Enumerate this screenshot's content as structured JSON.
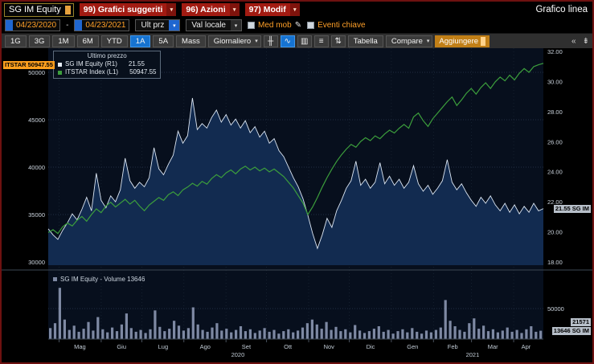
{
  "titlebar": {
    "security": "SG IM Equity",
    "menus": [
      {
        "label": "99) Grafici suggeriti"
      },
      {
        "label": "96) Azioni"
      },
      {
        "label": "97) Modif"
      }
    ],
    "screen_title": "Grafico linea"
  },
  "controls": {
    "date_from": "04/23/2020",
    "date_to": "04/23/2021",
    "price_field": "Ult prz",
    "currency_field": "Val locale",
    "mov_avg": "Med mob",
    "key_events": "Eventi chiave"
  },
  "toolbar": {
    "periods": [
      "1G",
      "3G",
      "1M",
      "6M",
      "YTD",
      "1A",
      "5A",
      "Mass"
    ],
    "active_period": "1A",
    "frequency": "Giornaliero",
    "table": "Tabella",
    "compare": "Compare",
    "add": "Aggiungere"
  },
  "icons": {
    "caret_down": "▾",
    "pencil": "✎",
    "candlestick": "╫",
    "line": "∿",
    "bars": "▥",
    "stack": "≡",
    "updown": "⇅",
    "collapse": "«",
    "pagedown": "⇟"
  },
  "legend": {
    "title": "Ultimo prezzo",
    "series": [
      {
        "label": "SG IM Equity  (R1)",
        "value": "21.55"
      },
      {
        "label": "ITSTAR Index  (L1)",
        "value": "50947.55"
      }
    ]
  },
  "tags": {
    "itstar": "ITSTAR 50947.55",
    "sgim": "21.55 SG IM",
    "vol_avg": "21571",
    "vol_last": "13646 SG IM"
  },
  "volume_legend": "SG IM Equity - Volume  13646",
  "chart_data": {
    "type": "line",
    "title": "Grafico linea",
    "x_start": "04/23/2020",
    "x_end": "04/23/2021",
    "x_months": [
      "Mag",
      "Giu",
      "Lug",
      "Ago",
      "Set",
      "Ott",
      "Nov",
      "Dic",
      "Gen",
      "Feb",
      "Mar",
      "Apr"
    ],
    "x_years": [
      "2020",
      "2021"
    ],
    "left_axis": {
      "series": "ITSTAR Index",
      "min": 30000,
      "max": 50000,
      "ticks": [
        50000,
        45000,
        40000,
        35000,
        30000
      ]
    },
    "right_axis": {
      "series": "SG IM Equity",
      "min": 18,
      "max": 32,
      "ticks": [
        32,
        30,
        28,
        26,
        24,
        22,
        20,
        18
      ]
    },
    "series": [
      {
        "name": "SG IM Equity (R1)",
        "axis": "right",
        "style": "area",
        "color": "#dce6f2",
        "fill": "#122b50",
        "last": 21.55,
        "values": [
          20.2,
          19.8,
          19.5,
          20.1,
          20.6,
          21.2,
          20.8,
          21.5,
          22.3,
          21.4,
          23.9,
          22.1,
          21.6,
          22.4,
          22.0,
          22.8,
          24.9,
          23.4,
          22.9,
          23.3,
          23.0,
          23.6,
          25.6,
          24.2,
          23.8,
          24.5,
          25.1,
          26.7,
          25.9,
          26.4,
          28.9,
          26.8,
          27.2,
          26.9,
          27.6,
          28.1,
          27.3,
          27.8,
          27.1,
          27.5,
          26.9,
          27.4,
          26.6,
          27.0,
          26.3,
          26.7,
          25.9,
          26.2,
          25.4,
          25.0,
          24.3,
          23.6,
          23.0,
          22.2,
          21.1,
          19.9,
          18.9,
          19.8,
          20.9,
          20.3,
          21.4,
          22.1,
          22.9,
          23.4,
          24.7,
          23.1,
          23.5,
          22.9,
          23.3,
          24.6,
          23.2,
          23.7,
          23.1,
          23.5,
          22.9,
          23.3,
          24.4,
          23.2,
          22.7,
          23.1,
          22.5,
          22.9,
          23.4,
          24.8,
          23.3,
          22.8,
          23.2,
          22.6,
          22.1,
          21.7,
          22.3,
          21.9,
          22.4,
          21.8,
          21.4,
          21.9,
          21.3,
          21.8,
          21.2,
          21.7,
          21.3,
          21.9,
          21.4,
          21.55
        ]
      },
      {
        "name": "ITSTAR Index (L1)",
        "axis": "left",
        "style": "line",
        "color": "#3c9e3c",
        "last": 50947.55,
        "values": [
          33100,
          33400,
          33000,
          33700,
          34100,
          33800,
          34400,
          34800,
          34300,
          35000,
          35600,
          35200,
          35900,
          36300,
          35800,
          36200,
          36600,
          36100,
          36500,
          35900,
          35400,
          36000,
          36400,
          36800,
          36500,
          37100,
          37400,
          37000,
          37600,
          37900,
          38300,
          38000,
          38500,
          38200,
          38800,
          39200,
          38900,
          39400,
          39700,
          39300,
          39800,
          40100,
          39700,
          40000,
          39600,
          39900,
          39500,
          39800,
          39400,
          39000,
          38400,
          37800,
          37000,
          36200,
          35000,
          35800,
          36800,
          37900,
          38900,
          39800,
          40600,
          41300,
          41900,
          42400,
          42100,
          42700,
          43100,
          42800,
          43300,
          43000,
          43500,
          43900,
          43600,
          44100,
          44500,
          44100,
          45300,
          45700,
          44900,
          44300,
          45100,
          45700,
          46300,
          46900,
          47400,
          46500,
          47100,
          47800,
          48300,
          47700,
          48400,
          48900,
          48300,
          49000,
          49500,
          49100,
          49700,
          49200,
          49900,
          50400,
          50000,
          50600,
          50800,
          50947.55
        ]
      }
    ],
    "volume": {
      "name": "SG IM Equity - Volume",
      "last": 13646,
      "tick": 50000,
      "color": "#7e89a3",
      "values": [
        18000,
        26000,
        84000,
        32000,
        15000,
        22000,
        12000,
        17000,
        28000,
        14000,
        36000,
        16000,
        11000,
        19000,
        13000,
        24000,
        42000,
        18000,
        12000,
        15000,
        10000,
        16000,
        47000,
        20000,
        13000,
        17000,
        30000,
        22000,
        14000,
        18000,
        52000,
        24000,
        15000,
        12000,
        19000,
        26000,
        14000,
        17000,
        11000,
        15000,
        21000,
        13000,
        16000,
        10000,
        14000,
        18000,
        12000,
        15000,
        9000,
        13000,
        16000,
        11000,
        14000,
        19000,
        26000,
        32000,
        24000,
        17000,
        28000,
        15000,
        20000,
        13000,
        16000,
        11000,
        23000,
        14000,
        10000,
        13000,
        17000,
        21000,
        12000,
        15000,
        9000,
        13000,
        16000,
        11000,
        18000,
        12000,
        9000,
        14000,
        11000,
        15000,
        19000,
        64000,
        30000,
        21000,
        15000,
        12000,
        26000,
        34000,
        17000,
        22000,
        13000,
        16000,
        11000,
        14000,
        19000,
        12000,
        15000,
        10000,
        16000,
        21000,
        12000,
        13646
      ]
    }
  }
}
